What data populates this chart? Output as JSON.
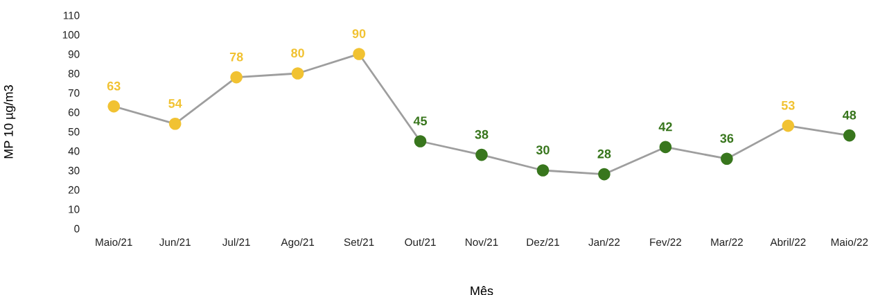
{
  "chart_data": {
    "type": "line",
    "xlabel": "Mês",
    "ylabel": "MP 10 µg/m3",
    "categories": [
      "Maio/21",
      "Jun/21",
      "Jul/21",
      "Ago/21",
      "Set/21",
      "Out/21",
      "Nov/21",
      "Dez/21",
      "Jan/22",
      "Fev/22",
      "Mar/22",
      "Abril/22",
      "Maio/22"
    ],
    "series": [
      {
        "color": "#9e9e9e",
        "values": [
          63,
          54,
          78,
          80,
          90,
          45,
          38,
          30,
          28,
          42,
          36,
          53,
          48
        ],
        "colors": [
          "#f1c232",
          "#f1c232",
          "#f1c232",
          "#f1c232",
          "#f1c232",
          "#38761d",
          "#38761d",
          "#38761d",
          "#38761d",
          "#38761d",
          "#38761d",
          "#f1c232",
          "#38761d"
        ]
      }
    ],
    "ylim": [
      0,
      110
    ],
    "yticks": [
      0,
      10,
      20,
      30,
      40,
      50,
      60,
      70,
      80,
      90,
      100,
      110
    ],
    "marker": "circle",
    "line_style": "solid",
    "data_labels": true,
    "grid": false,
    "legend": false
  }
}
